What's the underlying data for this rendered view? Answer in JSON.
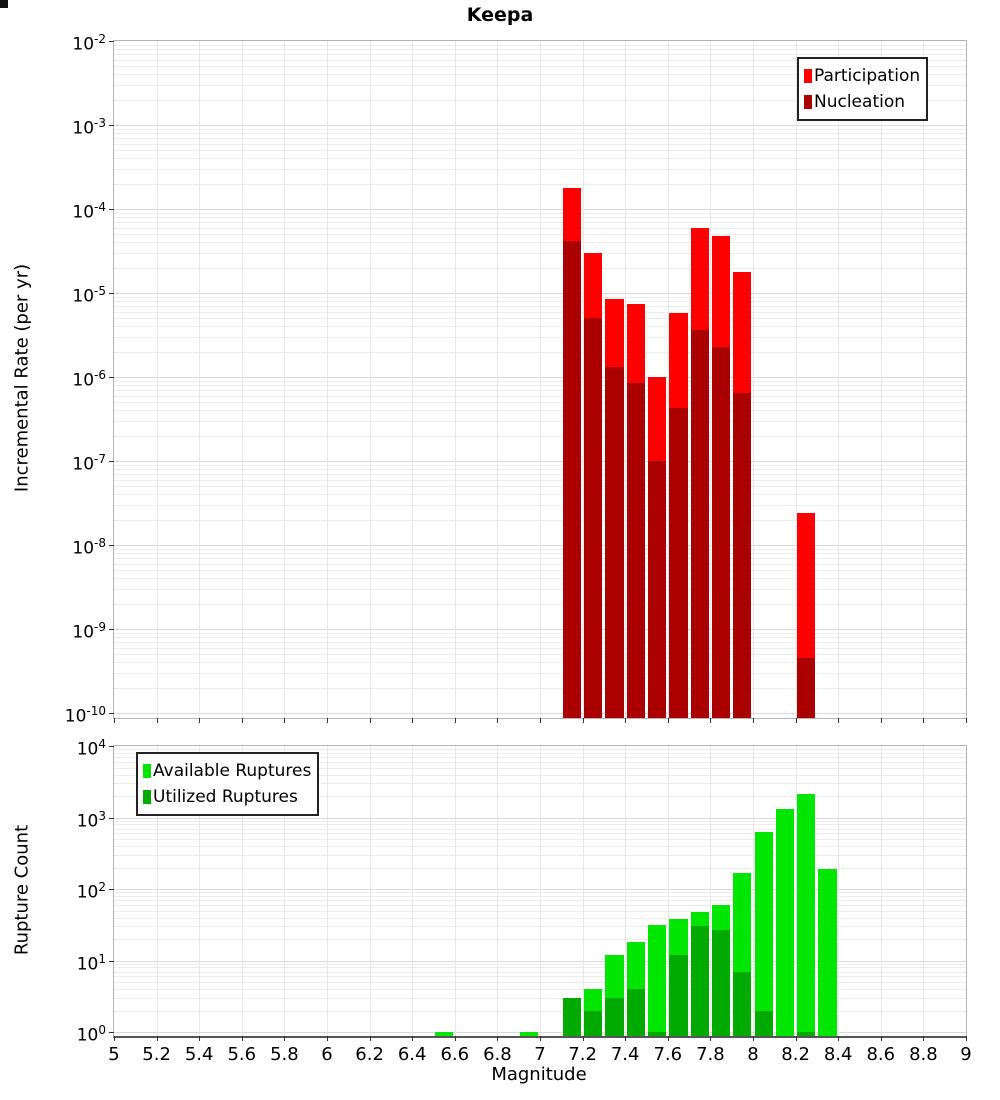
{
  "title": "Keepa",
  "colors": {
    "participation": "#ff0000",
    "nucleation": "#aa0000",
    "available": "#00e600",
    "utilized": "#00aa00"
  },
  "xaxis": {
    "label": "Magnitude",
    "min": 5,
    "max": 9,
    "ticks": [
      {
        "v": 5,
        "label": "5"
      },
      {
        "v": 5.2,
        "label": "5.2"
      },
      {
        "v": 5.4,
        "label": "5.4"
      },
      {
        "v": 5.6,
        "label": "5.6"
      },
      {
        "v": 5.8,
        "label": "5.8"
      },
      {
        "v": 6,
        "label": "6"
      },
      {
        "v": 6.2,
        "label": "6.2"
      },
      {
        "v": 6.4,
        "label": "6.4"
      },
      {
        "v": 6.6,
        "label": "6.6"
      },
      {
        "v": 6.8,
        "label": "6.8"
      },
      {
        "v": 7,
        "label": "7"
      },
      {
        "v": 7.2,
        "label": "7.2"
      },
      {
        "v": 7.4,
        "label": "7.4"
      },
      {
        "v": 7.6,
        "label": "7.6"
      },
      {
        "v": 7.8,
        "label": "7.8"
      },
      {
        "v": 8,
        "label": "8"
      },
      {
        "v": 8.2,
        "label": "8.2"
      },
      {
        "v": 8.4,
        "label": "8.4"
      },
      {
        "v": 8.6,
        "label": "8.6"
      },
      {
        "v": 8.8,
        "label": "8.8"
      },
      {
        "v": 9,
        "label": "9"
      }
    ]
  },
  "chart_data": [
    {
      "type": "bar",
      "title": "Keepa",
      "ylabel": "Incremental Rate (per yr)",
      "xlabel": "Magnitude",
      "y_scale": "log",
      "y_exp_min": -10,
      "y_exp_max": -2,
      "xlim": [
        5,
        9
      ],
      "grid": true,
      "legend_position": "top-right",
      "bin_width": 0.1,
      "legend": [
        {
          "label": "Participation",
          "color_key": "participation"
        },
        {
          "label": "Nucleation",
          "color_key": "nucleation"
        }
      ],
      "series_keys": [
        "participation",
        "nucleation"
      ],
      "bins": [
        {
          "m": 7.1,
          "participation": 0.00018,
          "nucleation": 4.2e-05
        },
        {
          "m": 7.2,
          "participation": 3e-05,
          "nucleation": 5e-06
        },
        {
          "m": 7.3,
          "participation": 8.5e-06,
          "nucleation": 1.3e-06
        },
        {
          "m": 7.4,
          "participation": 7.5e-06,
          "nucleation": 8.5e-07
        },
        {
          "m": 7.5,
          "participation": 1e-06,
          "nucleation": 1e-07
        },
        {
          "m": 7.6,
          "participation": 5.8e-06,
          "nucleation": 4.3e-07
        },
        {
          "m": 7.7,
          "participation": 6e-05,
          "nucleation": 3.6e-06
        },
        {
          "m": 7.8,
          "participation": 4.8e-05,
          "nucleation": 2.3e-06
        },
        {
          "m": 7.9,
          "participation": 1.8e-05,
          "nucleation": 6.5e-07
        },
        {
          "m": 8.2,
          "participation": 2.4e-08,
          "nucleation": 4.5e-10
        }
      ]
    },
    {
      "type": "bar",
      "title": "",
      "ylabel": "Rupture Count",
      "xlabel": "Magnitude",
      "y_scale": "log",
      "y_exp_min": 0,
      "y_exp_max": 4,
      "xlim": [
        5,
        9
      ],
      "grid": true,
      "legend_position": "top-left",
      "bin_width": 0.1,
      "legend": [
        {
          "label": "Available Ruptures",
          "color_key": "available"
        },
        {
          "label": "Utilized Ruptures",
          "color_key": "utilized"
        }
      ],
      "series_keys": [
        "available",
        "utilized"
      ],
      "bins": [
        {
          "m": 6.5,
          "available": 1,
          "utilized": 0
        },
        {
          "m": 6.9,
          "available": 1,
          "utilized": 0
        },
        {
          "m": 7.1,
          "available": 3,
          "utilized": 3
        },
        {
          "m": 7.2,
          "available": 4,
          "utilized": 2
        },
        {
          "m": 7.3,
          "available": 12,
          "utilized": 3
        },
        {
          "m": 7.4,
          "available": 18,
          "utilized": 4
        },
        {
          "m": 7.5,
          "available": 31,
          "utilized": 1
        },
        {
          "m": 7.6,
          "available": 38,
          "utilized": 12
        },
        {
          "m": 7.7,
          "available": 48,
          "utilized": 30
        },
        {
          "m": 7.8,
          "available": 60,
          "utilized": 27
        },
        {
          "m": 7.9,
          "available": 170,
          "utilized": 7
        },
        {
          "m": 8.0,
          "available": 620,
          "utilized": 2
        },
        {
          "m": 8.1,
          "available": 1300,
          "utilized": 0
        },
        {
          "m": 8.2,
          "available": 2150,
          "utilized": 1
        },
        {
          "m": 8.3,
          "available": 190,
          "utilized": 0
        }
      ]
    }
  ]
}
